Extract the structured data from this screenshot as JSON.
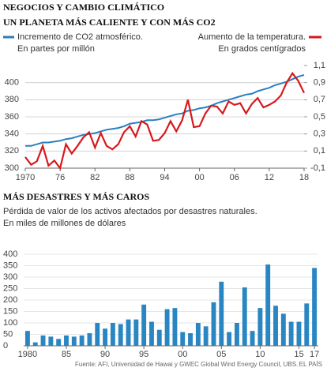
{
  "header": "NEGOCIOS Y CAMBIO CLIMÁTICO",
  "chart_data": [
    {
      "type": "line",
      "title": "UN PLANETA MÁS CALIENTE Y CON MÁS CO2",
      "x": [
        1970,
        1971,
        1972,
        1973,
        1974,
        1975,
        1976,
        1977,
        1978,
        1979,
        1980,
        1981,
        1982,
        1983,
        1984,
        1985,
        1986,
        1987,
        1988,
        1989,
        1990,
        1991,
        1992,
        1993,
        1994,
        1995,
        1996,
        1997,
        1998,
        1999,
        2000,
        2001,
        2002,
        2003,
        2004,
        2005,
        2006,
        2007,
        2008,
        2009,
        2010,
        2011,
        2012,
        2013,
        2014,
        2015,
        2016,
        2017,
        2018
      ],
      "xlim": [
        1970,
        2018
      ],
      "xticks": [
        {
          "value": 1970,
          "label": "1970"
        },
        {
          "value": 1976,
          "label": "76"
        },
        {
          "value": 1982,
          "label": "82"
        },
        {
          "value": 1988,
          "label": "88"
        },
        {
          "value": 1994,
          "label": "94"
        },
        {
          "value": 2000,
          "label": "00"
        },
        {
          "value": 2006,
          "label": "06"
        },
        {
          "value": 2012,
          "label": "12"
        },
        {
          "value": 2018,
          "label": "18"
        }
      ],
      "ylim": [
        300,
        420
      ],
      "yticks": [
        300,
        320,
        340,
        360,
        380,
        400
      ],
      "y2lim": [
        -0.1,
        1.1
      ],
      "y2ticks": [
        {
          "value": -0.1,
          "label": "-0,1"
        },
        {
          "value": 0.1,
          "label": "0,1"
        },
        {
          "value": 0.3,
          "label": "0,3"
        },
        {
          "value": 0.5,
          "label": "0,5"
        },
        {
          "value": 0.7,
          "label": "0,7"
        },
        {
          "value": 0.9,
          "label": "0,9"
        },
        {
          "value": 1.1,
          "label": "1,1"
        }
      ],
      "grid": true,
      "series": [
        {
          "name": "Incremento de CO2 atmosférico.",
          "unit": "En partes por millón",
          "color": "#2a7fc1",
          "values": [
            326,
            326,
            328,
            330,
            330,
            331,
            332,
            334,
            335,
            337,
            339,
            340,
            341,
            343,
            345,
            346,
            347,
            349,
            352,
            353,
            354,
            356,
            356,
            357,
            359,
            361,
            363,
            364,
            367,
            368,
            370,
            371,
            373,
            376,
            378,
            380,
            382,
            384,
            386,
            387,
            390,
            392,
            394,
            397,
            399,
            401,
            404,
            407,
            409
          ]
        },
        {
          "name": "Aumento de la temperatura.",
          "unit": "En grados centígrados",
          "color": "#d7191c",
          "axis": "y2",
          "values": [
            0.03,
            -0.06,
            -0.02,
            0.16,
            -0.07,
            -0.01,
            -0.1,
            0.18,
            0.07,
            0.16,
            0.26,
            0.32,
            0.14,
            0.31,
            0.16,
            0.12,
            0.18,
            0.32,
            0.39,
            0.27,
            0.45,
            0.41,
            0.22,
            0.23,
            0.31,
            0.45,
            0.33,
            0.46,
            0.7,
            0.38,
            0.39,
            0.54,
            0.63,
            0.62,
            0.54,
            0.68,
            0.64,
            0.66,
            0.54,
            0.65,
            0.72,
            0.61,
            0.64,
            0.68,
            0.75,
            0.9,
            1.01,
            0.92,
            0.78
          ]
        }
      ]
    },
    {
      "type": "bar",
      "title": "MÁS DESASTRES Y MÁS CAROS",
      "subtitle": "Pérdida de valor de los activos afectados por desastres naturales.",
      "unit": "En miles de millones de dólares",
      "categories": [
        "1980",
        null,
        null,
        null,
        null,
        "85",
        null,
        null,
        null,
        null,
        "90",
        null,
        null,
        null,
        null,
        "95",
        null,
        null,
        null,
        null,
        "00",
        null,
        null,
        null,
        null,
        "05",
        null,
        null,
        null,
        null,
        "10",
        null,
        null,
        null,
        null,
        "15",
        null,
        "17"
      ],
      "values": [
        65,
        15,
        45,
        40,
        30,
        45,
        40,
        45,
        55,
        100,
        75,
        100,
        95,
        115,
        115,
        180,
        105,
        70,
        160,
        165,
        60,
        55,
        100,
        85,
        190,
        280,
        60,
        100,
        255,
        65,
        165,
        355,
        175,
        140,
        105,
        105,
        185,
        340
      ],
      "color": "#2a86c2",
      "ylim": [
        0,
        400
      ],
      "yticks": [
        0,
        50,
        100,
        150,
        200,
        250,
        300,
        350,
        400
      ],
      "grid": true
    }
  ],
  "source": "Fuente: AFI, Universidad de Hawai y GWEC Global Wind Energy Council, UBS.",
  "credit": "EL PAÍS"
}
